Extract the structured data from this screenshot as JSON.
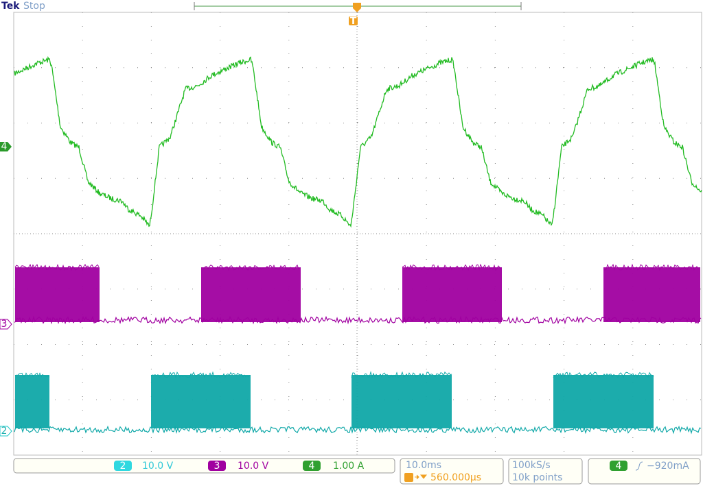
{
  "header": {
    "brand": "Tek",
    "status": "Stop",
    "trigger_marker": "T"
  },
  "channel_markers": {
    "ch4": "4",
    "ch3": "3",
    "ch2": "2"
  },
  "status_bar": {
    "channels": [
      {
        "number": "2",
        "scale": "10.0 V"
      },
      {
        "number": "3",
        "scale": "10.0 V"
      },
      {
        "number": "4",
        "scale": "1.00 A"
      }
    ],
    "timebase": "10.0ms",
    "trigger_position": "560.000µs",
    "sample_rate": "100kS/s",
    "record_length": "10k points",
    "trigger_source": "4",
    "trigger_level": "−920mA"
  }
}
